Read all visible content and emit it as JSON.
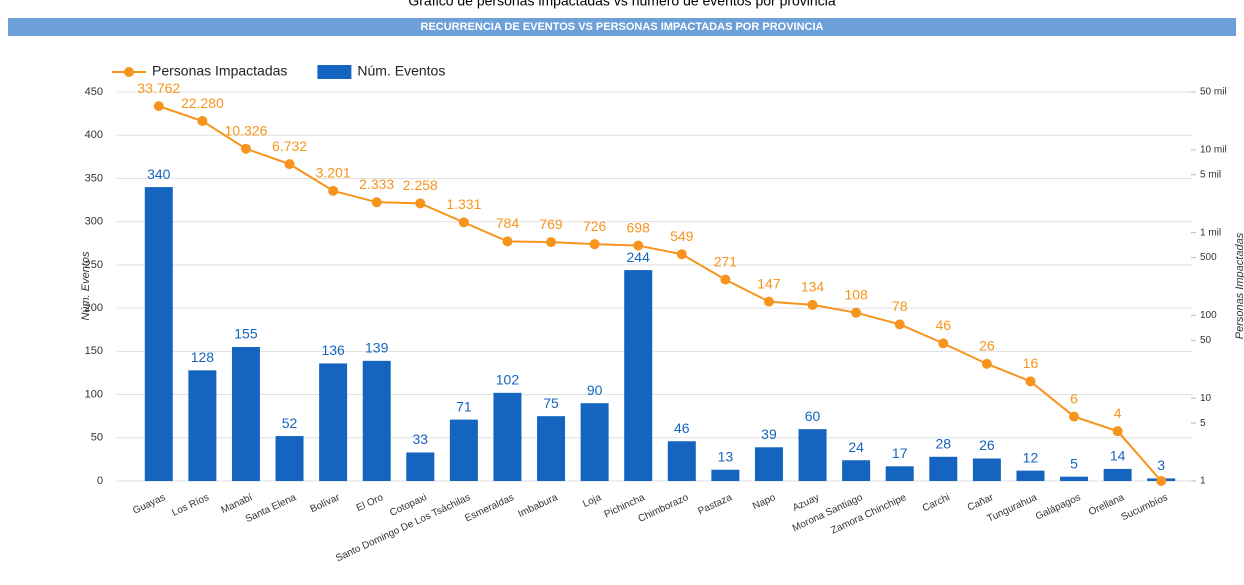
{
  "chart_data": {
    "type": "combo",
    "title": "Gráfico de personas impactadas vs número de eventos por provincia",
    "subtitle": "RECURRENCIA DE EVENTOS VS PERSONAS IMPACTADAS POR PROVINCIA",
    "y_label": "Núm. Eventos",
    "y2_label": "Personas Impactadas",
    "categories": [
      "Guayas",
      "Los Ríos",
      "Manabí",
      "Santa Elena",
      "Bolívar",
      "El Oro",
      "Cotopaxi",
      "Santo Domingo De Los Tsáchilas",
      "Esmeraldas",
      "Imbabura",
      "Loja",
      "Pichincha",
      "Chimborazo",
      "Pastaza",
      "Napo",
      "Azuay",
      "Morona Santiago",
      "Zamora Chinchipe",
      "Carchi",
      "Cañar",
      "Tungurahua",
      "Galápagos",
      "Orellana",
      "Sucumbíos"
    ],
    "series": [
      {
        "name": "Personas Impactadas",
        "type": "line",
        "axis": "y2",
        "color": "#f7941d",
        "values": [
          33762,
          22280,
          10326,
          6732,
          3201,
          2333,
          2258,
          1331,
          784,
          769,
          726,
          698,
          549,
          271,
          147,
          134,
          108,
          78,
          46,
          26,
          16,
          6,
          4,
          1
        ],
        "value_labels": [
          "33.762",
          "22.280",
          "10.326",
          "6.732",
          "3.201",
          "2.333",
          "2.258",
          "1.331",
          "784",
          "769",
          "726",
          "698",
          "549",
          "271",
          "147",
          "134",
          "108",
          "78",
          "46",
          "26",
          "16",
          "6",
          "4",
          null
        ]
      },
      {
        "name": "Núm. Eventos",
        "type": "bar",
        "color": "#1565c0",
        "values": [
          340,
          128,
          155,
          52,
          136,
          139,
          33,
          71,
          102,
          75,
          90,
          244,
          46,
          13,
          39,
          60,
          24,
          17,
          28,
          26,
          12,
          5,
          14,
          3
        ]
      }
    ],
    "ylim": [
      0,
      450
    ],
    "yticks": [
      0,
      50,
      100,
      150,
      200,
      250,
      300,
      350,
      400,
      450
    ],
    "y2lim": [
      1,
      50000
    ],
    "y2log": true,
    "y2ticks": [
      1,
      5,
      10,
      50,
      100,
      500,
      {
        "value": 1000,
        "label": "1 mil"
      },
      {
        "value": 5000,
        "label": "5 mil"
      },
      {
        "value": 10000,
        "label": "10 mil"
      },
      {
        "value": 50000,
        "label": "50 mil"
      }
    ],
    "grid": true
  }
}
